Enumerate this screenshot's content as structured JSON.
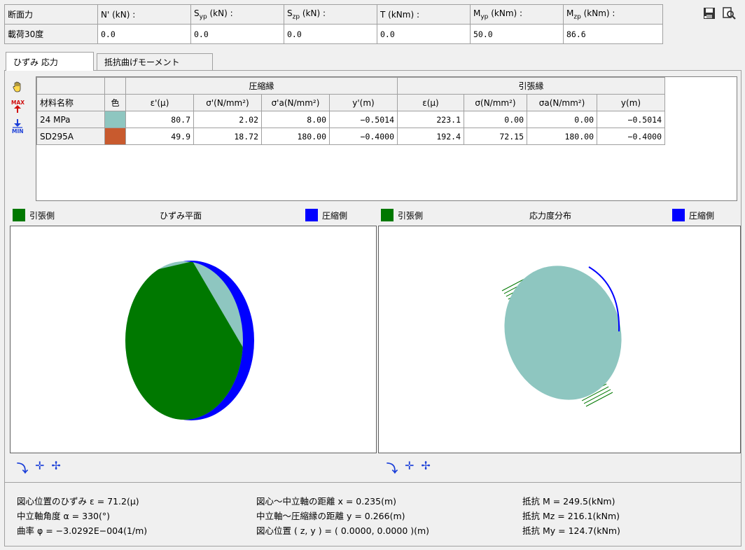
{
  "forces": {
    "row_labels": [
      "断面力",
      "載荷30度"
    ],
    "headers": [
      "N' (kN) :",
      "Svp (kN) :",
      "Szp (kN) :",
      "T (kNm) :",
      "Myp (kNm) :",
      "Mzp (kNm) :"
    ],
    "header_parts": [
      {
        "main": "N' (kN) :",
        "sub": ""
      },
      {
        "main": "S",
        "sub": "yp",
        "unit": " (kN) :"
      },
      {
        "main": "S",
        "sub": "zp",
        "unit": " (kN) :"
      },
      {
        "main": "T (kNm) :",
        "sub": ""
      },
      {
        "main": "M",
        "sub": "yp",
        "unit": " (kNm) :"
      },
      {
        "main": "M",
        "sub": "zp",
        "unit": " (kNm) :"
      }
    ],
    "values": [
      "0.0",
      "0.0",
      "0.0",
      "0.0",
      "50.0",
      "86.6"
    ]
  },
  "toolbar": {
    "icons": [
      "save-icon",
      "print-preview-icon"
    ]
  },
  "tabs": [
    {
      "label": "ひずみ 応力",
      "active": true
    },
    {
      "label": "抵抗曲げモーメント",
      "active": false
    }
  ],
  "side_tools": [
    "hand-icon",
    "max-icon",
    "min-icon"
  ],
  "table": {
    "group_compression": "圧縮縁",
    "group_tension": "引張縁",
    "col_material": "材料名称",
    "col_color": "色",
    "comp_cols": [
      "ε'(μ)",
      "σ'(N/mm²)",
      "σ'a(N/mm²)",
      "y'(m)"
    ],
    "tens_cols": [
      "ε(μ)",
      "σ(N/mm²)",
      "σa(N/mm²)",
      "y(m)"
    ],
    "rows": [
      {
        "name": "24 MPa",
        "color": "#8ec6c0",
        "values": [
          "80.7",
          "2.02",
          "8.00",
          "−0.5014",
          "223.1",
          "0.00",
          "0.00",
          "−0.5014"
        ]
      },
      {
        "name": "SD295A",
        "color": "#c85a2e",
        "values": [
          "49.9",
          "18.72",
          "180.00",
          "−0.4000",
          "192.4",
          "72.15",
          "180.00",
          "−0.4000"
        ]
      }
    ]
  },
  "left_panel": {
    "title": "ひずみ平面",
    "tension_label": "引張側",
    "compression_label": "圧縮側"
  },
  "right_panel": {
    "title": "応力度分布",
    "tension_label": "引張側",
    "compression_label": "圧縮側"
  },
  "colors": {
    "tension": "#007800",
    "compression": "#0000ff",
    "concrete": "#8ec6c0",
    "steel": "#c85a2e"
  },
  "stats": {
    "strain": "図心位置のひずみ ε = 71.2(μ)",
    "angle": "中立軸角度 α = 330(°)",
    "curvature": "曲率 φ = −3.0292E−004(1/m)",
    "dist_x": "図心〜中立軸の距離 x = 0.235(m)",
    "dist_y": "中立軸〜圧縮縁の距離 y = 0.266(m)",
    "centroid": "図心位置 ( z, y ) = ( 0.0000, 0.0000 )(m)",
    "m": "抵抗 M = 249.5(kNm)",
    "mz": "抵抗 Mz = 216.1(kNm)",
    "my": "抵抗 My = 124.7(kNm)"
  }
}
